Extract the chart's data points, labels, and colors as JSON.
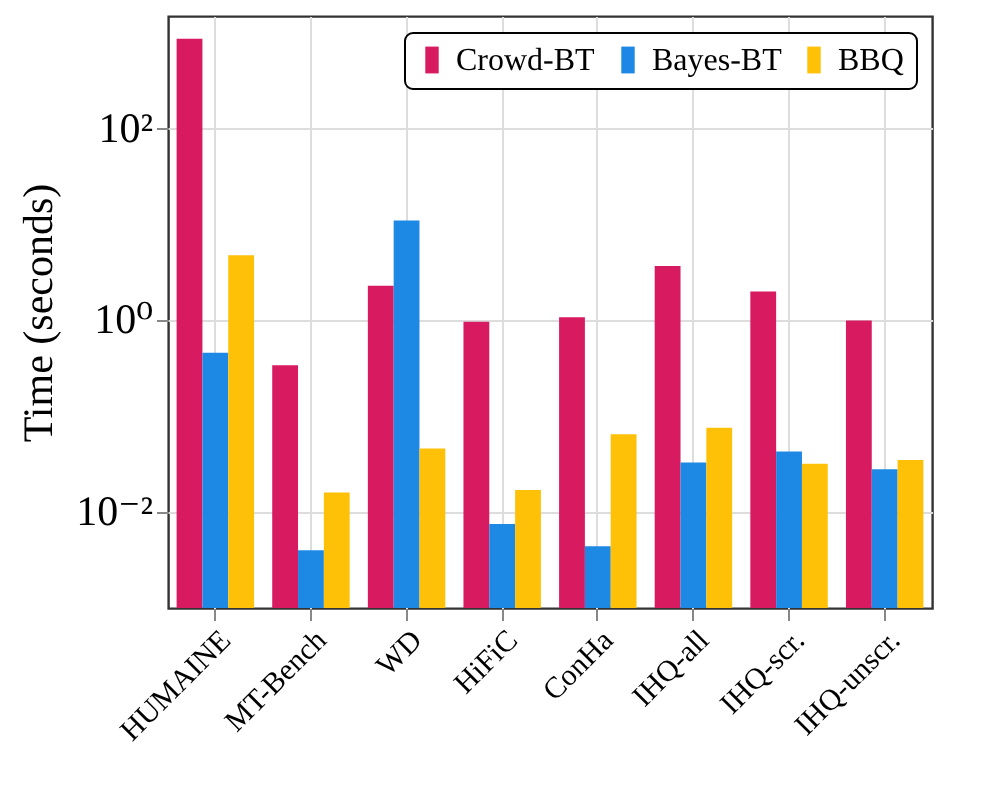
{
  "chart_data": {
    "type": "bar",
    "ylabel": "Time (seconds)",
    "log": true,
    "categories": [
      "HUMAINE",
      "MT-Bench",
      "WD",
      "HiFiC",
      "ConHa",
      "IHQ-all",
      "IHQ-scr.",
      "IHQ-unscr."
    ],
    "series": [
      {
        "name": "Crowd-BT",
        "color": "#d81b60",
        "values": [
          870,
          0.34,
          2.3,
          0.97,
          1.08,
          3.7,
          2.0,
          1.0
        ]
      },
      {
        "name": "Bayes-BT",
        "color": "#1e88e5",
        "values": [
          0.46,
          0.004,
          11,
          0.0075,
          0.0044,
          0.033,
          0.043,
          0.028
        ]
      },
      {
        "name": "BBQ",
        "color": "#ffc107",
        "values": [
          4.8,
          0.016,
          0.046,
          0.017,
          0.065,
          0.076,
          0.032,
          0.035
        ]
      }
    ],
    "ylim": [
      0.001,
      1500
    ],
    "yticks": [
      {
        "value": 0.01,
        "label": "10⁻²"
      },
      {
        "value": 1,
        "label": "10⁰"
      },
      {
        "value": 100,
        "label": "10²"
      }
    ],
    "grid": true,
    "legend": "top right"
  }
}
